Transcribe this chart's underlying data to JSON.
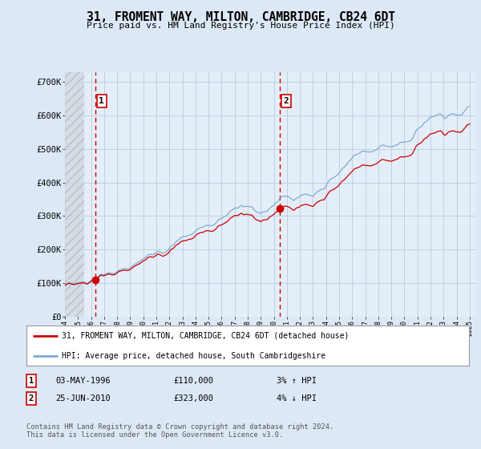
{
  "title": "31, FROMENT WAY, MILTON, CAMBRIDGE, CB24 6DT",
  "subtitle": "Price paid vs. HM Land Registry's House Price Index (HPI)",
  "property_label": "31, FROMENT WAY, MILTON, CAMBRIDGE, CB24 6DT (detached house)",
  "hpi_label": "HPI: Average price, detached house, South Cambridgeshire",
  "sale1_date": "03-MAY-1996",
  "sale1_price": 110000,
  "sale1_hpi_pct": "3% ↑ HPI",
  "sale2_date": "25-JUN-2010",
  "sale2_price": 323000,
  "sale2_hpi_pct": "4% ↓ HPI",
  "footnote": "Contains HM Land Registry data © Crown copyright and database right 2024.\nThis data is licensed under the Open Government Licence v3.0.",
  "ylim": [
    0,
    730000
  ],
  "xlim_start": 1994.0,
  "xlim_end": 2025.5,
  "hatch_end": 1995.5,
  "bg_color": "#dce8f5",
  "plot_bg": "#e4eef8",
  "hatch_color": "#c8c8c8",
  "grid_color": "#b8cce0",
  "property_color": "#cc0000",
  "hpi_color": "#7ba7d0",
  "dashed_line_color": "#cc0000",
  "sale1_year": 1996.35,
  "sale2_year": 2010.48
}
